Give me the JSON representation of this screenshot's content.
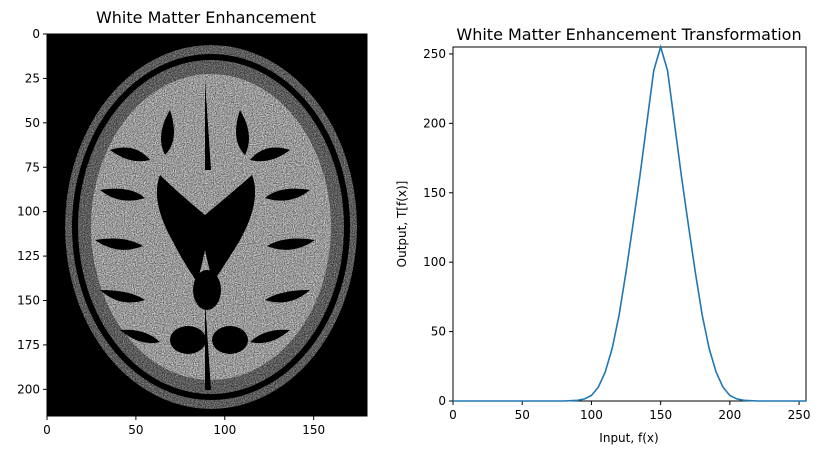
{
  "chart_data": [
    {
      "type": "image",
      "title": "White Matter Enhancement",
      "xlim": [
        0,
        180
      ],
      "ylim": [
        215,
        0
      ],
      "xticks": [
        0,
        50,
        100,
        150
      ],
      "yticks": [
        0,
        25,
        50,
        75,
        100,
        125,
        150,
        175,
        200
      ],
      "xlabel": "",
      "ylabel": "",
      "cmap": "gray",
      "grid": false
    },
    {
      "type": "line",
      "title": "White Matter Enhancement Transformation",
      "xlabel": "Input, f(x)",
      "ylabel": "Output, T[f(x)]",
      "xlim": [
        0,
        255
      ],
      "ylim": [
        0,
        255
      ],
      "xticks": [
        0,
        50,
        100,
        150,
        200,
        250
      ],
      "yticks": [
        0,
        50,
        100,
        150,
        200,
        250
      ],
      "grid": false,
      "series": [
        {
          "color": "#1f77b4",
          "x": [
            0,
            80,
            90,
            95,
            100,
            105,
            110,
            115,
            120,
            125,
            130,
            135,
            140,
            145,
            150,
            155,
            160,
            165,
            170,
            175,
            180,
            185,
            190,
            195,
            200,
            205,
            210,
            220,
            255
          ],
          "y": [
            0,
            0,
            0.5,
            1.5,
            4,
            10,
            21,
            38,
            62,
            93,
            127,
            162,
            200,
            238,
            255,
            238,
            200,
            162,
            127,
            93,
            62,
            38,
            21,
            10,
            4,
            1.5,
            0.5,
            0,
            0
          ]
        }
      ]
    }
  ]
}
